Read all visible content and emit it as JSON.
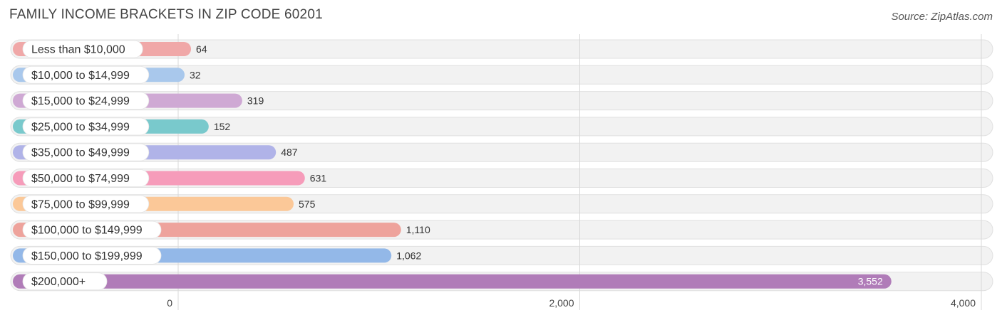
{
  "header": {
    "title": "FAMILY INCOME BRACKETS IN ZIP CODE 60201",
    "source": "Source: ZipAtlas.com"
  },
  "chart_data": {
    "type": "bar",
    "orientation": "horizontal",
    "title": "FAMILY INCOME BRACKETS IN ZIP CODE 60201",
    "categories": [
      "Less than $10,000",
      "$10,000 to $14,999",
      "$15,000 to $24,999",
      "$25,000 to $34,999",
      "$35,000 to $49,999",
      "$50,000 to $74,999",
      "$75,000 to $99,999",
      "$100,000 to $149,999",
      "$150,000 to $199,999",
      "$200,000+"
    ],
    "values": [
      64,
      32,
      319,
      152,
      487,
      631,
      575,
      1110,
      1062,
      3552
    ],
    "value_labels": [
      "64",
      "32",
      "319",
      "152",
      "487",
      "631",
      "575",
      "1,110",
      "1,062",
      "3,552"
    ],
    "colors": [
      "#f0a8a8",
      "#a9c8ec",
      "#cfa9d4",
      "#79c9cc",
      "#b0b3e8",
      "#f69cba",
      "#fbc898",
      "#eea39c",
      "#93b8e8",
      "#b07cb8"
    ],
    "xlim": [
      0,
      4000
    ],
    "xticks": [
      0,
      2000,
      4000
    ],
    "xtick_labels": [
      "0",
      "2,000",
      "4,000"
    ],
    "grid": true,
    "xlabel": "",
    "ylabel": ""
  }
}
